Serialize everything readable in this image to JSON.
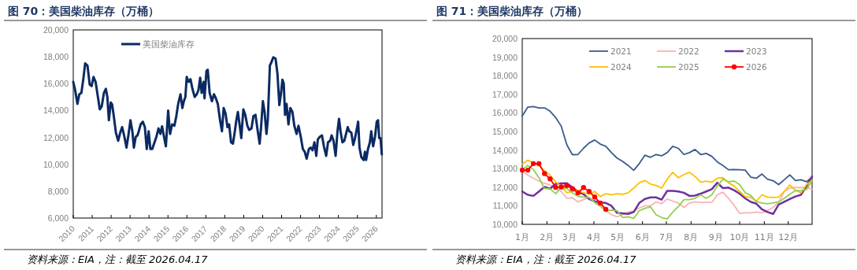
{
  "chart_data": [
    {
      "type": "line",
      "title": "图 70：美国柴油库存（万桶）",
      "annotations": [
        "资料来源：EIA，注：截至 2026.04.17"
      ],
      "legend": "top left",
      "marker": "none",
      "grid": false,
      "xlim": [
        2010,
        2026.3
      ],
      "xticks": [
        2010,
        2011,
        2012,
        2013,
        2014,
        2015,
        2016,
        2017,
        2018,
        2019,
        2020,
        2021,
        2022,
        2023,
        2024,
        2025,
        2026
      ],
      "ylim": [
        6000,
        20000
      ],
      "yticks": [
        {
          "value": 6000,
          "label": "6,000"
        },
        {
          "value": 8000,
          "label": "8,000"
        },
        {
          "value": 10000,
          "label": "10,000"
        },
        {
          "value": 12000,
          "label": "12,000"
        },
        {
          "value": 14000,
          "label": "14,000"
        },
        {
          "value": 16000,
          "label": "16,000"
        },
        {
          "value": 18000,
          "label": "18,000"
        },
        {
          "value": 20000,
          "label": "20,000"
        }
      ],
      "series": [
        {
          "name": "美国柴油库存",
          "color": "#0b2a63",
          "x": [
            2010.0,
            2010.1,
            2010.22,
            2010.32,
            2010.43,
            2010.53,
            2010.63,
            2010.75,
            2010.87,
            2010.97,
            2011.07,
            2011.18,
            2011.28,
            2011.4,
            2011.5,
            2011.62,
            2011.72,
            2011.8,
            2011.88,
            2011.98,
            2012.05,
            2012.14,
            2012.25,
            2012.37,
            2012.48,
            2012.58,
            2012.7,
            2012.81,
            2012.91,
            2013.02,
            2013.12,
            2013.2,
            2013.3,
            2013.39,
            2013.46,
            2013.56,
            2013.67,
            2013.78,
            2013.88,
            2013.98,
            2014.07,
            2014.17,
            2014.29,
            2014.39,
            2014.5,
            2014.6,
            2014.69,
            2014.79,
            2014.89,
            2015.01,
            2015.11,
            2015.22,
            2015.34,
            2015.44,
            2015.54,
            2015.66,
            2015.76,
            2015.84,
            2015.92,
            2015.99,
            2016.09,
            2016.19,
            2016.29,
            2016.41,
            2016.52,
            2016.61,
            2016.7,
            2016.78,
            2016.88,
            2016.93,
            2017.03,
            2017.1,
            2017.2,
            2017.32,
            2017.43,
            2017.53,
            2017.63,
            2017.75,
            2017.85,
            2017.94,
            2018.04,
            2018.14,
            2018.23,
            2018.33,
            2018.43,
            2018.51,
            2018.61,
            2018.69,
            2018.79,
            2018.87,
            2018.98,
            2019.08,
            2019.19,
            2019.29,
            2019.41,
            2019.51,
            2019.62,
            2019.74,
            2019.84,
            2019.91,
            2020.01,
            2020.1,
            2020.2,
            2020.27,
            2020.38,
            2020.46,
            2020.56,
            2020.68,
            2020.78,
            2020.88,
            2020.97,
            2021.04,
            2021.11,
            2021.18,
            2021.26,
            2021.36,
            2021.46,
            2021.57,
            2021.67,
            2021.79,
            2021.89,
            2022.01,
            2022.12,
            2022.22,
            2022.32,
            2022.44,
            2022.54,
            2022.63,
            2022.73,
            2022.83,
            2022.91,
            2023.02,
            2023.13,
            2023.23,
            2023.35,
            2023.45,
            2023.56,
            2023.64,
            2023.74,
            2023.85,
            2023.95,
            2024.03,
            2024.11,
            2024.21,
            2024.31,
            2024.4,
            2024.49,
            2024.57,
            2024.68,
            2024.78,
            2024.86,
            2024.96,
            2025.04,
            2025.11,
            2025.21,
            2025.33,
            2025.4,
            2025.46,
            2025.56,
            2025.66,
            2025.73,
            2025.83,
            2025.93,
            2026.02,
            2026.09,
            2026.15,
            2026.22,
            2026.29
          ],
          "values": [
            16130,
            15520,
            14500,
            15210,
            15310,
            16330,
            17510,
            17350,
            15920,
            15820,
            16500,
            16130,
            15210,
            14090,
            14290,
            15310,
            15620,
            15010,
            13280,
            14600,
            14460,
            13580,
            12360,
            11750,
            12360,
            12770,
            12050,
            11240,
            12150,
            13280,
            12460,
            11240,
            12050,
            12150,
            12460,
            12970,
            13170,
            12770,
            11140,
            12460,
            11140,
            11140,
            11640,
            12050,
            12670,
            12260,
            12830,
            12050,
            11340,
            13990,
            12260,
            12970,
            12870,
            13580,
            14500,
            15210,
            14190,
            14700,
            15010,
            16500,
            16130,
            16330,
            15620,
            15010,
            15210,
            15520,
            16440,
            15310,
            16130,
            14910,
            16940,
            17040,
            15310,
            14700,
            15210,
            14910,
            14500,
            13280,
            12460,
            14190,
            13780,
            12770,
            12970,
            11640,
            11540,
            12260,
            13280,
            13890,
            12870,
            11950,
            14090,
            13680,
            12870,
            12560,
            12670,
            13580,
            13680,
            12460,
            11540,
            12670,
            14700,
            13890,
            12260,
            13280,
            17350,
            17590,
            17960,
            17860,
            16740,
            14400,
            15310,
            16290,
            16030,
            13680,
            14500,
            12970,
            14190,
            13890,
            12870,
            12260,
            12870,
            12050,
            11140,
            10930,
            10420,
            11140,
            11240,
            11040,
            11640,
            10630,
            11850,
            12050,
            12150,
            11340,
            10630,
            11640,
            11750,
            12150,
            11750,
            10630,
            12460,
            13380,
            12460,
            11640,
            11750,
            12260,
            12770,
            12460,
            12360,
            11440,
            11850,
            12560,
            13170,
            11240,
            10520,
            10320,
            10930,
            10320,
            11140,
            11640,
            12460,
            11340,
            12050,
            13170,
            13280,
            11950,
            11950,
            10730
          ]
        }
      ]
    },
    {
      "type": "line",
      "title": "图 71：美国柴油库存（万桶）",
      "annotations": [
        "资料来源：EIA，注：截至 2026.04.17"
      ],
      "legend": "top",
      "marker": "none",
      "grid": false,
      "xlim": [
        "--01-01",
        "--12-31"
      ],
      "xticks": [
        {
          "value": "--01-01",
          "label": "1月"
        },
        {
          "value": "--02-01",
          "label": "2月"
        },
        {
          "value": "--03-01",
          "label": "3月"
        },
        {
          "value": "--04-01",
          "label": "4月"
        },
        {
          "value": "--05-01",
          "label": "5月"
        },
        {
          "value": "--06-01",
          "label": "6月"
        },
        {
          "value": "--07-01",
          "label": "7月"
        },
        {
          "value": "--08-01",
          "label": "8月"
        },
        {
          "value": "--09-01",
          "label": "9月"
        },
        {
          "value": "--10-01",
          "label": "10月"
        },
        {
          "value": "--11-01",
          "label": "11月"
        },
        {
          "value": "--12-01",
          "label": "12月"
        }
      ],
      "ylim": [
        10000,
        20000
      ],
      "yticks": [
        {
          "value": 10000,
          "label": "10,000"
        },
        {
          "value": 11000,
          "label": "11,000"
        },
        {
          "value": 12000,
          "label": "12,000"
        },
        {
          "value": 13000,
          "label": "13,000"
        },
        {
          "value": 14000,
          "label": "14,000"
        },
        {
          "value": 15000,
          "label": "15,000"
        },
        {
          "value": 16000,
          "label": "16,000"
        },
        {
          "value": 17000,
          "label": "17,000"
        },
        {
          "value": 18000,
          "label": "18,000"
        },
        {
          "value": 19000,
          "label": "19,000"
        },
        {
          "value": 20000,
          "label": "20,000"
        }
      ],
      "x": [
        "--01-01",
        "--01-08",
        "--01-15",
        "--01-22",
        "--01-29",
        "--02-05",
        "--02-12",
        "--02-19",
        "--02-26",
        "--03-05",
        "--03-12",
        "--03-19",
        "--03-26",
        "--04-02",
        "--04-09",
        "--04-16",
        "--04-23",
        "--04-30",
        "--05-07",
        "--05-14",
        "--05-21",
        "--05-28",
        "--06-04",
        "--06-11",
        "--06-18",
        "--06-25",
        "--07-02",
        "--07-09",
        "--07-16",
        "--07-23",
        "--07-30",
        "--08-06",
        "--08-13",
        "--08-20",
        "--08-27",
        "--09-03",
        "--09-10",
        "--09-17",
        "--09-24",
        "--10-01",
        "--10-08",
        "--10-15",
        "--10-22",
        "--10-29",
        "--11-05",
        "--11-12",
        "--11-19",
        "--11-26",
        "--12-03",
        "--12-10",
        "--12-17",
        "--12-24",
        "--12-31"
      ],
      "series": [
        {
          "name": "2021",
          "color": "#3b5b8c",
          "values": [
            15830,
            16310,
            16340,
            16270,
            16270,
            16090,
            15750,
            15280,
            14280,
            13750,
            13760,
            14100,
            14380,
            14540,
            14320,
            14200,
            13860,
            13570,
            13390,
            13170,
            12910,
            13270,
            13720,
            13610,
            13760,
            13690,
            13860,
            14200,
            14090,
            13760,
            13860,
            14030,
            13760,
            13820,
            13660,
            13360,
            13170,
            12940,
            12950,
            12940,
            12920,
            12540,
            12480,
            12710,
            12430,
            12350,
            12140,
            12400,
            12660,
            12360,
            12400,
            12290,
            12540
          ]
        },
        {
          "name": "2022",
          "color": "#f7b4b4",
          "values": [
            12860,
            12650,
            12480,
            12330,
            12210,
            12120,
            11950,
            11770,
            11400,
            11430,
            11210,
            11330,
            11450,
            11180,
            10960,
            10740,
            10520,
            10410,
            10520,
            10660,
            10710,
            10880,
            11000,
            11000,
            11210,
            11110,
            11360,
            11250,
            11150,
            10910,
            11150,
            11210,
            11180,
            11180,
            11180,
            11590,
            11730,
            11400,
            11030,
            10590,
            10620,
            10620,
            10660,
            10620,
            10740,
            10910,
            11180,
            11770,
            11950,
            11980,
            11980,
            11990,
            11890
          ]
        },
        {
          "name": "2023",
          "color": "#7030a0",
          "values": [
            11770,
            11590,
            11530,
            11770,
            12020,
            11920,
            12180,
            12200,
            12210,
            11990,
            11770,
            11620,
            11360,
            11240,
            11180,
            11150,
            11000,
            10620,
            10590,
            10560,
            10660,
            11150,
            11370,
            11450,
            11450,
            11330,
            11800,
            11800,
            11770,
            11700,
            11530,
            11550,
            11650,
            11770,
            11890,
            12240,
            11950,
            11980,
            11840,
            11650,
            11400,
            11210,
            11110,
            10810,
            10660,
            10560,
            11060,
            11210,
            11360,
            11500,
            11590,
            12060,
            12580
          ]
        },
        {
          "name": "2024",
          "color": "#ffc000",
          "values": [
            13240,
            13450,
            13320,
            13160,
            12880,
            12650,
            12290,
            12060,
            11700,
            11770,
            11840,
            11700,
            11620,
            11770,
            11500,
            11650,
            11590,
            11650,
            11620,
            11700,
            11950,
            12240,
            12360,
            12170,
            12090,
            11950,
            12430,
            12800,
            12510,
            12680,
            12800,
            12580,
            12270,
            12330,
            12270,
            12480,
            12510,
            12240,
            12060,
            11770,
            11500,
            11450,
            11250,
            11590,
            11470,
            11450,
            11470,
            11770,
            12120,
            11840,
            11700,
            12140,
            12360
          ]
        },
        {
          "name": "2025",
          "color": "#92d050",
          "values": [
            12950,
            13170,
            12950,
            12510,
            11920,
            11920,
            11650,
            12010,
            11920,
            11700,
            11500,
            11470,
            11450,
            11180,
            11000,
            10740,
            10770,
            10740,
            10370,
            10410,
            10320,
            10740,
            10860,
            10940,
            10520,
            10370,
            10290,
            10660,
            10960,
            11330,
            11330,
            11400,
            11590,
            11400,
            11590,
            12060,
            12430,
            12290,
            12330,
            12140,
            11700,
            11550,
            11220,
            11150,
            11110,
            11150,
            11210,
            11400,
            11620,
            11810,
            11830,
            11870,
            12360
          ]
        },
        {
          "name": "2026",
          "color": "#ff0000",
          "marker": "circle",
          "x": [
            "--01-01",
            "--01-08",
            "--01-15",
            "--01-22",
            "--01-29",
            "--02-05",
            "--02-12",
            "--02-19",
            "--02-26",
            "--03-05",
            "--03-12",
            "--03-19",
            "--03-26",
            "--04-02",
            "--04-09",
            "--04-16"
          ],
          "values": [
            12920,
            12920,
            13270,
            13270,
            12730,
            12450,
            11990,
            12010,
            12090,
            11920,
            11700,
            11980,
            11770,
            11470,
            11150,
            10810
          ]
        }
      ]
    }
  ]
}
